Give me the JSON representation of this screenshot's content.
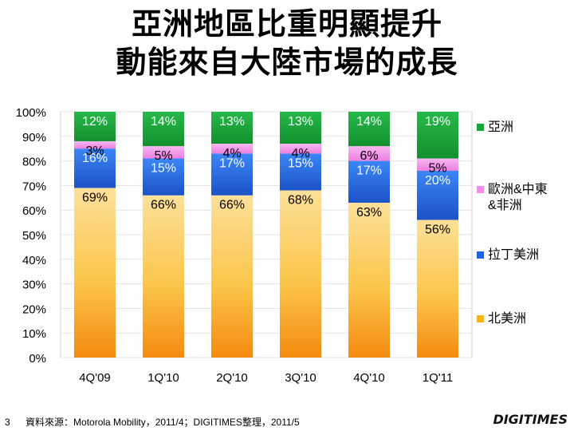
{
  "title_lines": [
    "亞洲地區比重明顯提升",
    "動能來自大陸市場的成長"
  ],
  "footer": {
    "page_number": "3",
    "source": "資料來源：Motorola Mobility，2011/4；DIGITIMES整理，2011/5"
  },
  "logo_text": "DIGITIMES",
  "chart_data": {
    "type": "bar",
    "stacked": true,
    "categories": [
      "4Q'09",
      "1Q'10",
      "2Q'10",
      "3Q'10",
      "4Q'10",
      "1Q'11"
    ],
    "yticks": [
      "0%",
      "10%",
      "20%",
      "30%",
      "40%",
      "50%",
      "60%",
      "70%",
      "80%",
      "90%",
      "100%"
    ],
    "ylim": [
      0,
      100
    ],
    "legend_position": "right",
    "series": [
      {
        "name": "北美洲",
        "values": [
          69,
          66,
          66,
          68,
          63,
          56
        ],
        "labels": [
          "69%",
          "66%",
          "66%",
          "68%",
          "63%",
          "56%"
        ],
        "color": "#f5b21a"
      },
      {
        "name": "拉丁美洲",
        "values": [
          16,
          15,
          17,
          15,
          17,
          20
        ],
        "labels": [
          "16%",
          "15%",
          "17%",
          "15%",
          "17%",
          "20%"
        ],
        "color": "#1f63e0"
      },
      {
        "name": "歐洲&中東&非洲",
        "values": [
          3,
          5,
          4,
          4,
          6,
          5
        ],
        "labels": [
          "3%",
          "5%",
          "4%",
          "4%",
          "6%",
          "5%"
        ],
        "color": "#f28ee8"
      },
      {
        "name": "亞洲",
        "values": [
          12,
          14,
          13,
          13,
          14,
          19
        ],
        "labels": [
          "12%",
          "14%",
          "13%",
          "13%",
          "14%",
          "19%"
        ],
        "color": "#1aa53a"
      }
    ]
  }
}
